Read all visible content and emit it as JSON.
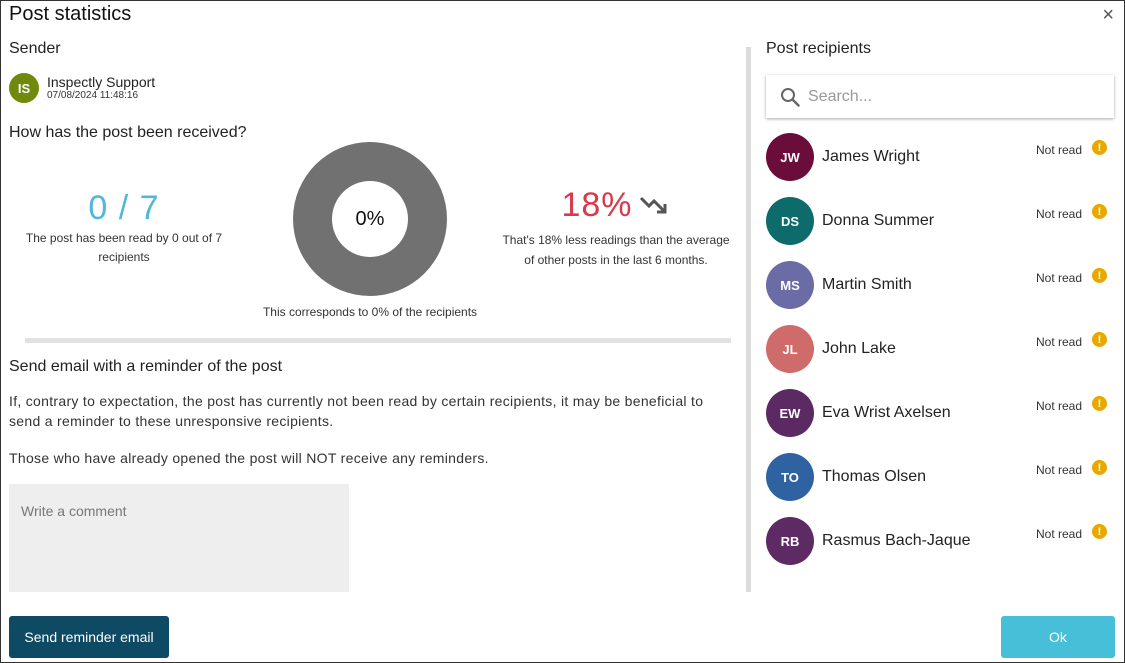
{
  "dialog": {
    "title": "Post statistics",
    "close_icon": "close-icon"
  },
  "sender": {
    "heading": "Sender",
    "initials": "IS",
    "name": "Inspectly Support",
    "timestamp": "07/08/2024 11:48:16",
    "avatar_color": "#6f8a0c"
  },
  "stats": {
    "heading": "How has the post been received?",
    "read_count": "0 / 7",
    "read_desc": "The post has been read by 0 out of 7 recipients",
    "donut_percent": 0,
    "donut_label": "0%",
    "donut_caption": "This corresponds to 0% of the recipients",
    "trend_value": "18%",
    "trend_icon": "trending-down-icon",
    "trend_desc": "That's 18% less readings than the average of other posts in the last 6 months.",
    "colors": {
      "read": "#4fb8d6",
      "trend": "#d9394b",
      "donut": "#717171"
    }
  },
  "reminder": {
    "heading": "Send email with a reminder of the post",
    "text": "If, contrary to expectation, the post has currently not been read by certain recipients, it may be beneficial to send a reminder to these unresponsive recipients.",
    "note": "Those who have already opened the post will NOT receive any reminders.",
    "comment_placeholder": "Write a comment",
    "send_label": "Send reminder email"
  },
  "recipients": {
    "heading": "Post recipients",
    "search_placeholder": "Search...",
    "items": [
      {
        "initials": "JW",
        "name": "James Wright",
        "status": "Not read",
        "color": "#6b0d3a"
      },
      {
        "initials": "DS",
        "name": "Donna Summer",
        "status": "Not read",
        "color": "#0d6b6b"
      },
      {
        "initials": "MS",
        "name": "Martin Smith",
        "status": "Not read",
        "color": "#6b6ba5"
      },
      {
        "initials": "JL",
        "name": "John Lake",
        "status": "Not read",
        "color": "#cf6b6b"
      },
      {
        "initials": "EW",
        "name": "Eva Wrist Axelsen",
        "status": "Not read",
        "color": "#5b2a63"
      },
      {
        "initials": "TO",
        "name": "Thomas Olsen",
        "status": "Not read",
        "color": "#2f62a0"
      },
      {
        "initials": "RB",
        "name": "Rasmus Bach-Jaque",
        "status": "Not read",
        "color": "#5e2a63"
      }
    ]
  },
  "footer": {
    "ok_label": "Ok"
  }
}
